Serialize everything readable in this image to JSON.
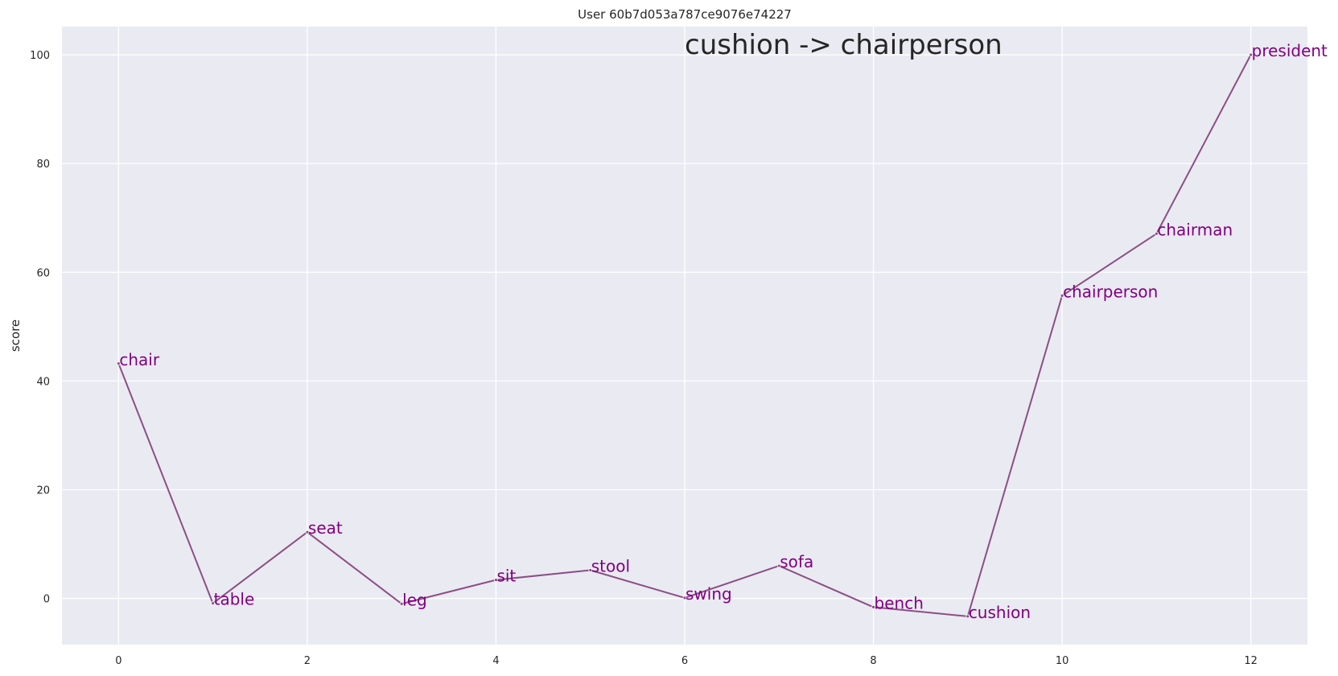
{
  "chart_data": {
    "type": "line",
    "title": "User 60b7d053a787ce9076e74227",
    "xlabel": "",
    "ylabel": "score",
    "annotation": "cushion -> chairperson",
    "x": [
      0,
      1,
      2,
      3,
      4,
      5,
      6,
      7,
      8,
      9,
      10,
      11,
      12
    ],
    "y": [
      43.2,
      -0.9,
      12.2,
      -1.0,
      3.4,
      5.2,
      0.1,
      6.0,
      -1.6,
      -3.3,
      55.7,
      67.1,
      100.0
    ],
    "point_labels": [
      "chair",
      "table",
      "seat",
      "leg",
      "sit",
      "stool",
      "swing",
      "sofa",
      "bench",
      "cushion",
      "chairperson",
      "chairman",
      "president"
    ],
    "xlim": [
      -0.6,
      12.6
    ],
    "ylim": [
      -8.5,
      105.2
    ],
    "xticks": [
      0,
      2,
      4,
      6,
      8,
      10,
      12
    ],
    "yticks": [
      0,
      20,
      40,
      60,
      80,
      100
    ],
    "grid": true,
    "colors": {
      "background": "#eaeaf2",
      "grid": "#ffffff",
      "line": "#8b4f84",
      "labels": "#800080"
    }
  }
}
